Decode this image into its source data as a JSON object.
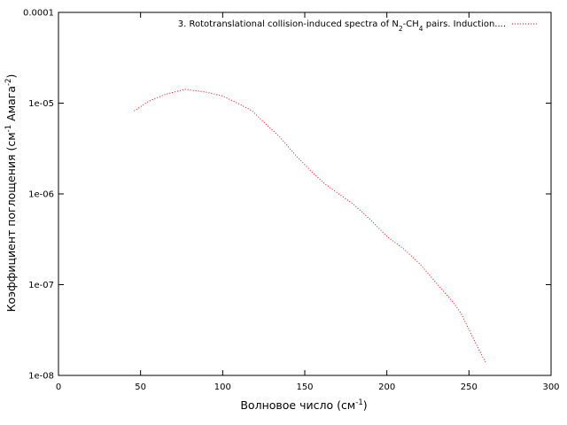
{
  "chart_data": {
    "type": "line",
    "xlabel": {
      "main": "Волновое число (см",
      "sup": "-1",
      "tail": ")"
    },
    "ylabel": {
      "p1": "Коэффициент поглощения (см",
      "sup1": "-1",
      "p2": " Амага",
      "sup2": "-2",
      "p3": ")"
    },
    "xlim": [
      0,
      300
    ],
    "ylim": [
      1e-08,
      0.0001
    ],
    "yscale": "log",
    "xticks": [
      0,
      50,
      100,
      150,
      200,
      250,
      300
    ],
    "xtick_labels": [
      "0",
      "50",
      "100",
      "150",
      "200",
      "250",
      "300"
    ],
    "yticks": [
      1e-08,
      1e-07,
      1e-06,
      1e-05,
      0.0001
    ],
    "ytick_labels": [
      "1e-08",
      "1e-07",
      "1e-06",
      "1e-05",
      "0.0001"
    ],
    "grid": false,
    "legend_position": "top-right",
    "series": [
      {
        "legend": {
          "p1": "3. Rototranslational collision-induced spectra of N",
          "sub1": "2",
          "p2": "-CH",
          "sub2": "4",
          "p3": " pairs. Induction...."
        },
        "color": "#ff0000",
        "style": "dotted",
        "x": [
          46,
          55,
          65,
          77,
          90,
          100,
          110,
          118,
          125,
          135,
          145,
          155,
          162,
          170,
          180,
          190,
          200,
          210,
          220,
          230,
          240,
          245,
          250,
          255,
          260
        ],
        "y": [
          8.2e-06,
          1.05e-05,
          1.25e-05,
          1.42e-05,
          1.32e-05,
          1.2e-05,
          9.8e-06,
          8.2e-06,
          6.2e-06,
          4.2e-06,
          2.6e-06,
          1.7e-06,
          1.3e-06,
          1.02e-06,
          7.6e-07,
          5.2e-07,
          3.4e-07,
          2.5e-07,
          1.7e-07,
          1.05e-07,
          6.5e-08,
          4.9e-08,
          3.2e-08,
          2.1e-08,
          1.4e-08
        ]
      }
    ]
  }
}
